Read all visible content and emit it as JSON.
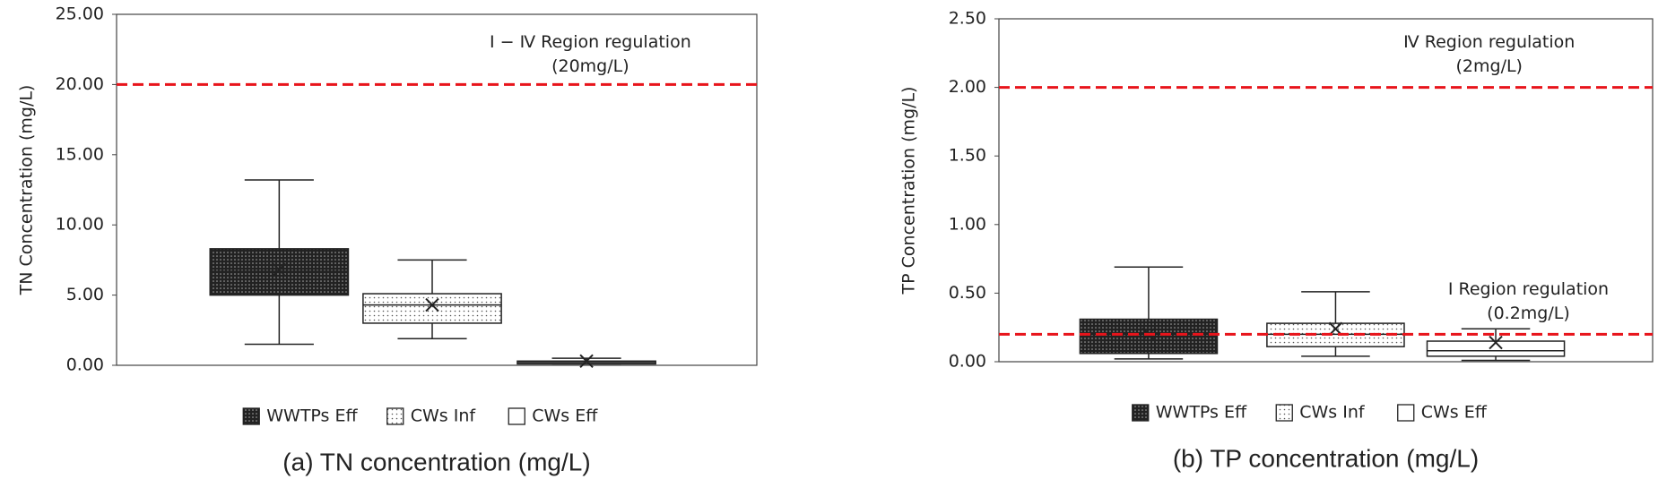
{
  "chart_data": [
    {
      "type": "box",
      "title": "(a) TN concentration (mg/L)",
      "y_label": "TN Concentration (mg/L)",
      "ylim": [
        0,
        25
      ],
      "yticks": [
        {
          "value": 0,
          "label": "0.00"
        },
        {
          "value": 5,
          "label": "5.00"
        },
        {
          "value": 10,
          "label": "10.00"
        },
        {
          "value": 15,
          "label": "15.00"
        },
        {
          "value": 20,
          "label": "20.00"
        },
        {
          "value": 25,
          "label": "25.00"
        }
      ],
      "series": [
        {
          "name": "WWTPs Eff",
          "color": "#333333",
          "pattern": "dark",
          "min": 1.5,
          "q1": 5.0,
          "median": 6.7,
          "q3": 8.3,
          "max": 13.2,
          "mean": 6.8
        },
        {
          "name": "CWs Inf",
          "color": "#e6e6e6",
          "pattern": "light",
          "min": 1.9,
          "q1": 3.0,
          "median": 4.3,
          "q3": 5.1,
          "max": 7.5,
          "mean": 4.3
        },
        {
          "name": "CWs Eff",
          "color": "#ffffff",
          "pattern": "none",
          "min": 0.1,
          "q1": 0.1,
          "median": 0.2,
          "q3": 0.3,
          "max": 0.5,
          "mean": 0.3
        }
      ],
      "ref_lines": [
        {
          "value": 20,
          "color": "#e8141b",
          "label": [
            "Ⅰ − Ⅳ Region regulation",
            "(20mg/L)"
          ]
        }
      ]
    },
    {
      "type": "box",
      "title": "(b) TP concentration (mg/L)",
      "y_label": "TP Concentration (mg/L)",
      "ylim": [
        0,
        2.5
      ],
      "yticks": [
        {
          "value": 0,
          "label": "0.00"
        },
        {
          "value": 0.5,
          "label": "0.50"
        },
        {
          "value": 1,
          "label": "1.00"
        },
        {
          "value": 1.5,
          "label": "1.50"
        },
        {
          "value": 2,
          "label": "2.00"
        },
        {
          "value": 2.5,
          "label": "2.50"
        }
      ],
      "series": [
        {
          "name": "WWTPs Eff",
          "color": "#333333",
          "pattern": "dark",
          "min": 0.02,
          "q1": 0.06,
          "median": 0.2,
          "q3": 0.31,
          "max": 0.69,
          "mean": 0.2
        },
        {
          "name": "CWs Inf",
          "color": "#e6e6e6",
          "pattern": "light",
          "min": 0.04,
          "q1": 0.11,
          "median": 0.2,
          "q3": 0.28,
          "max": 0.51,
          "mean": 0.24
        },
        {
          "name": "CWs Eff",
          "color": "#ffffff",
          "pattern": "none",
          "min": 0.01,
          "q1": 0.04,
          "median": 0.08,
          "q3": 0.15,
          "max": 0.24,
          "mean": 0.14
        }
      ],
      "ref_lines": [
        {
          "value": 2,
          "color": "#e8141b",
          "label": [
            "Ⅳ Region regulation",
            "(2mg/L)"
          ]
        },
        {
          "value": 0.2,
          "color": "#e8141b",
          "label": [
            "Ⅰ Region regulation",
            "(0.2mg/L)"
          ]
        }
      ]
    }
  ]
}
